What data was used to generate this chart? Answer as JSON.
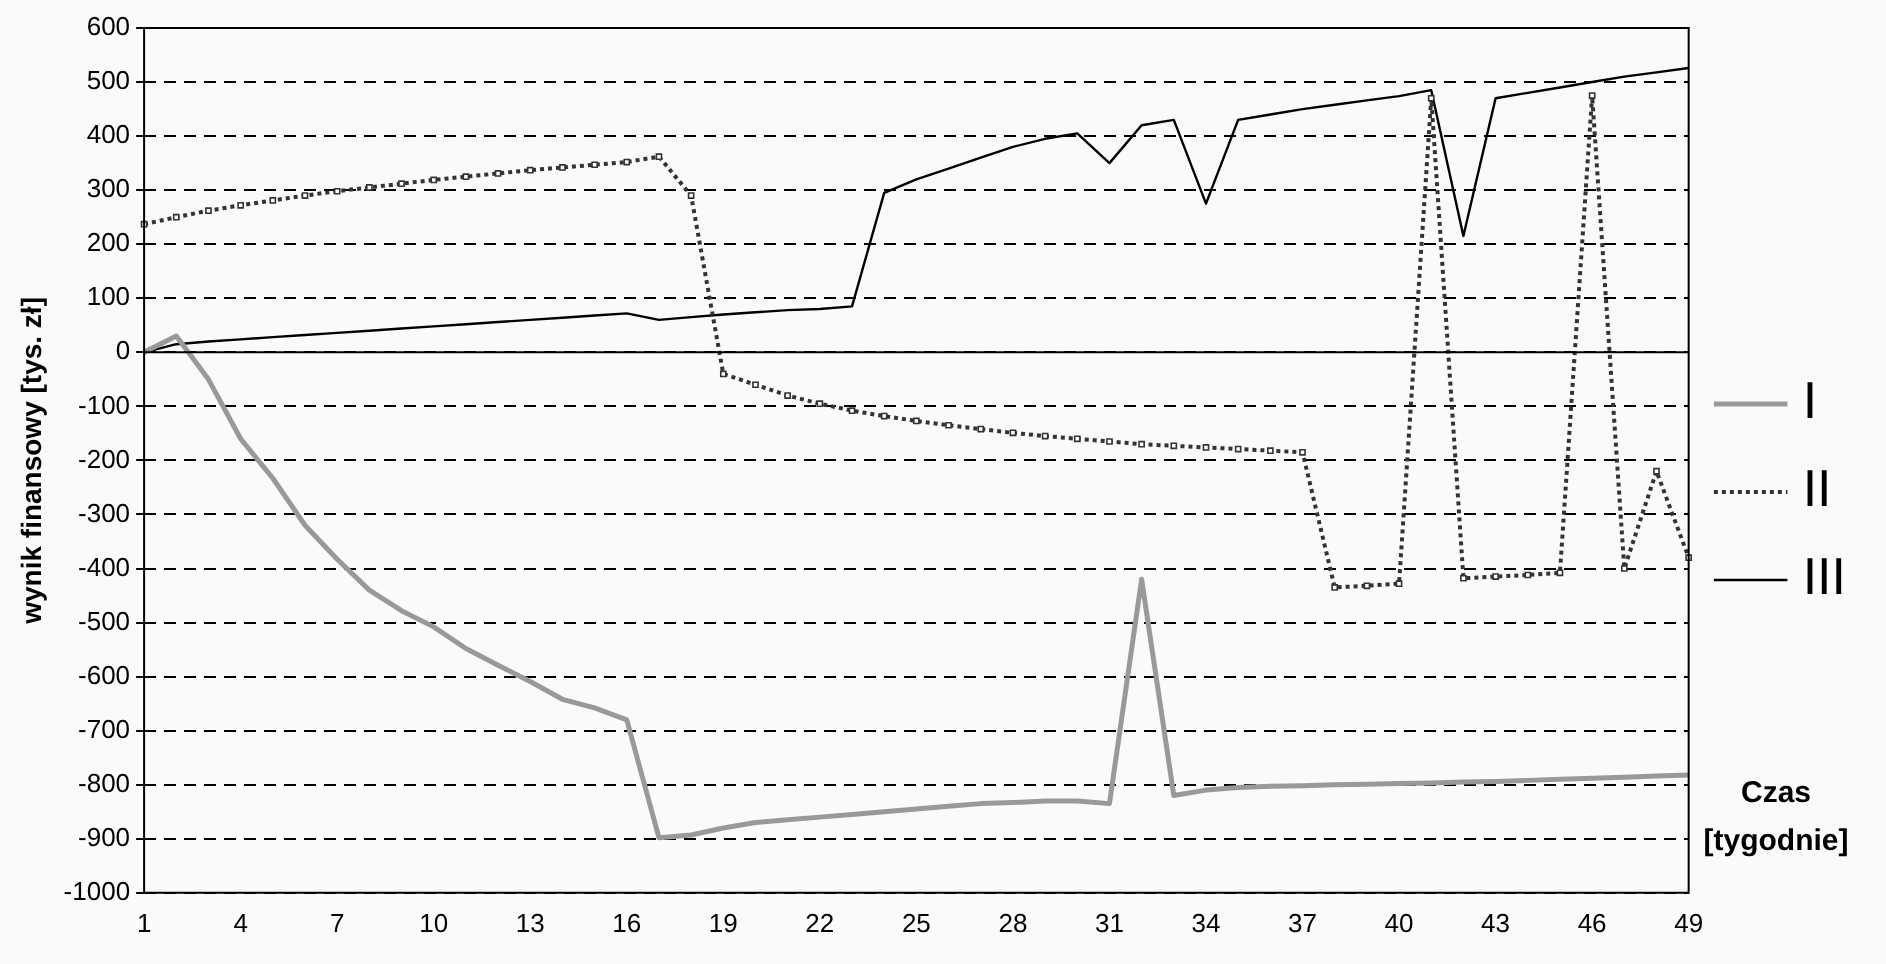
{
  "chart_data": {
    "type": "line",
    "ylabel": "wynik finansowy [tys. zł]",
    "xlabel": "Czas [tygodnie]",
    "categories": [
      "1",
      null,
      null,
      "4",
      null,
      null,
      "7",
      null,
      null,
      "10",
      null,
      null,
      "13",
      null,
      null,
      "16",
      null,
      null,
      "19",
      null,
      null,
      "22",
      null,
      null,
      "25",
      null,
      null,
      "28",
      null,
      null,
      "31",
      null,
      null,
      "34",
      null,
      null,
      "37",
      null,
      null,
      "40",
      null,
      null,
      "43",
      null,
      null,
      "46",
      null,
      null,
      "49"
    ],
    "series": [
      {
        "name": "I",
        "color": "#999999",
        "values": [
          0,
          30,
          -50,
          -160,
          -233,
          -320,
          -383,
          -440,
          -478,
          -508,
          -548,
          -579,
          -609,
          -642,
          -658,
          -680,
          -898,
          -893,
          -880,
          -870,
          -865,
          -860,
          -855,
          -850,
          -845,
          -840,
          -835,
          -833,
          -830,
          -830,
          -835,
          -420,
          -820,
          -810,
          -805,
          -803,
          -802,
          -800,
          -799,
          -798,
          -797,
          -795,
          -794,
          -792,
          -790,
          -788,
          -786,
          -784,
          -782
        ]
      },
      {
        "name": "II",
        "color": "#333333",
        "marker": "square",
        "line_style": "dotted",
        "values": [
          237,
          250,
          262,
          272,
          281,
          290,
          298,
          305,
          312,
          319,
          325,
          331,
          337,
          342,
          347,
          352,
          362,
          290,
          -40,
          -60,
          -80,
          -95,
          -108,
          -118,
          -127,
          -135,
          -142,
          -149,
          -155,
          -160,
          -165,
          -170,
          -173,
          -176,
          -179,
          -182,
          -185,
          -435,
          -432,
          -428,
          470,
          -418,
          -415,
          -412,
          -408,
          475,
          -400,
          -220,
          -380
        ]
      },
      {
        "name": "III",
        "color": "#000000",
        "values": [
          0,
          15,
          20,
          24,
          28,
          32,
          36,
          40,
          44,
          48,
          52,
          56,
          60,
          64,
          68,
          72,
          60,
          65,
          70,
          74,
          78,
          80,
          85,
          295,
          320,
          340,
          360,
          380,
          395,
          405,
          350,
          420,
          430,
          275,
          430,
          440,
          450,
          458,
          466,
          474,
          485,
          215,
          470,
          480,
          490,
          500,
          510,
          518,
          526
        ]
      }
    ],
    "ylim": [
      -1000,
      600
    ],
    "yticks": [
      -1000,
      -900,
      -800,
      -700,
      -600,
      -500,
      -400,
      -300,
      -200,
      -100,
      0,
      100,
      200,
      300,
      400,
      500,
      600
    ],
    "grid": "y",
    "ref_lines": [
      {
        "axis": "y",
        "value": 0,
        "color": "#000000",
        "line_style": "solid"
      }
    ],
    "legend": "right",
    "marker": "none",
    "line_style": "solid"
  }
}
